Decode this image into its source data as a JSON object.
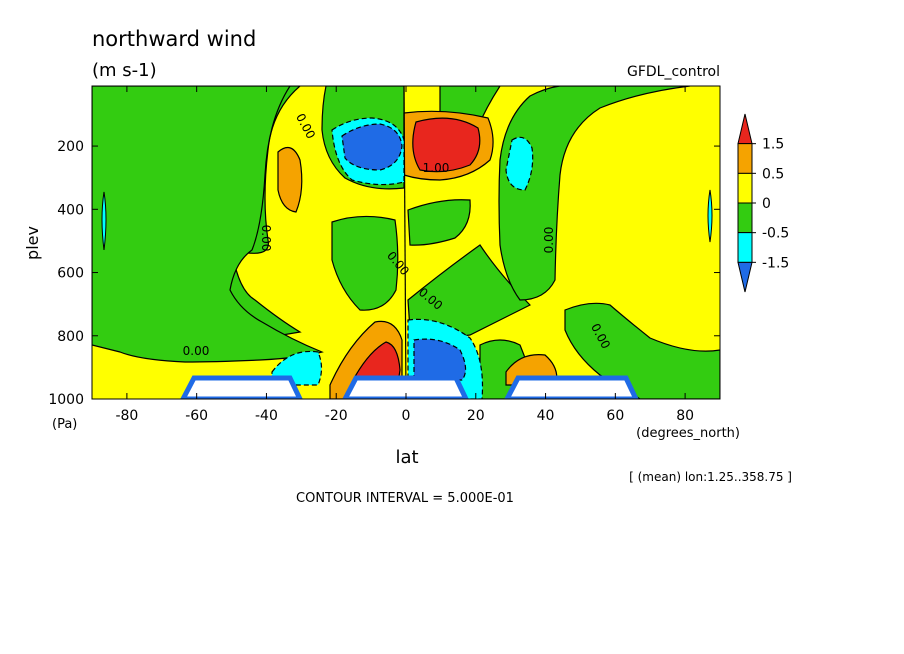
{
  "chart_data": {
    "type": "contour",
    "title": "northward wind",
    "units": "(m s-1)",
    "dataset": "GFDL_control",
    "xlabel": "lat",
    "xunits": "(degrees_north)",
    "ylabel": "plev",
    "yunits": "(Pa)",
    "xlim": [
      -90,
      90
    ],
    "ylim": [
      1000,
      10
    ],
    "xticks": [
      -80,
      -60,
      -40,
      -20,
      0,
      20,
      40,
      60,
      80
    ],
    "yticks": [
      200,
      400,
      600,
      800,
      1000
    ],
    "contour_interval_label": "CONTOUR INTERVAL = 5.000E-01",
    "mean_note": "[ (mean) lon:1.25..358.75 ]",
    "contour_labels": [
      "0.00",
      "0.00",
      "0.00",
      "0.00",
      "0.00",
      "0.00",
      "0.00",
      "1.00"
    ],
    "colorbar": {
      "labels": [
        "1.5",
        "0.5",
        "0",
        "-0.5",
        "-1.5"
      ],
      "colors": [
        "#e8261e",
        "#f5a300",
        "#ffff00",
        "#33cc11",
        "#00ffff",
        "#1f6be6"
      ]
    },
    "features": [
      {
        "type": "min",
        "lat": -10,
        "plev": 200,
        "value": -1.5
      },
      {
        "type": "max",
        "lat": 10,
        "plev": 200,
        "value": 1.5
      },
      {
        "type": "max",
        "lat": -12,
        "plev": 900,
        "value": 1.5
      },
      {
        "type": "min",
        "lat": 8,
        "plev": 880,
        "value": -1.0
      }
    ]
  }
}
